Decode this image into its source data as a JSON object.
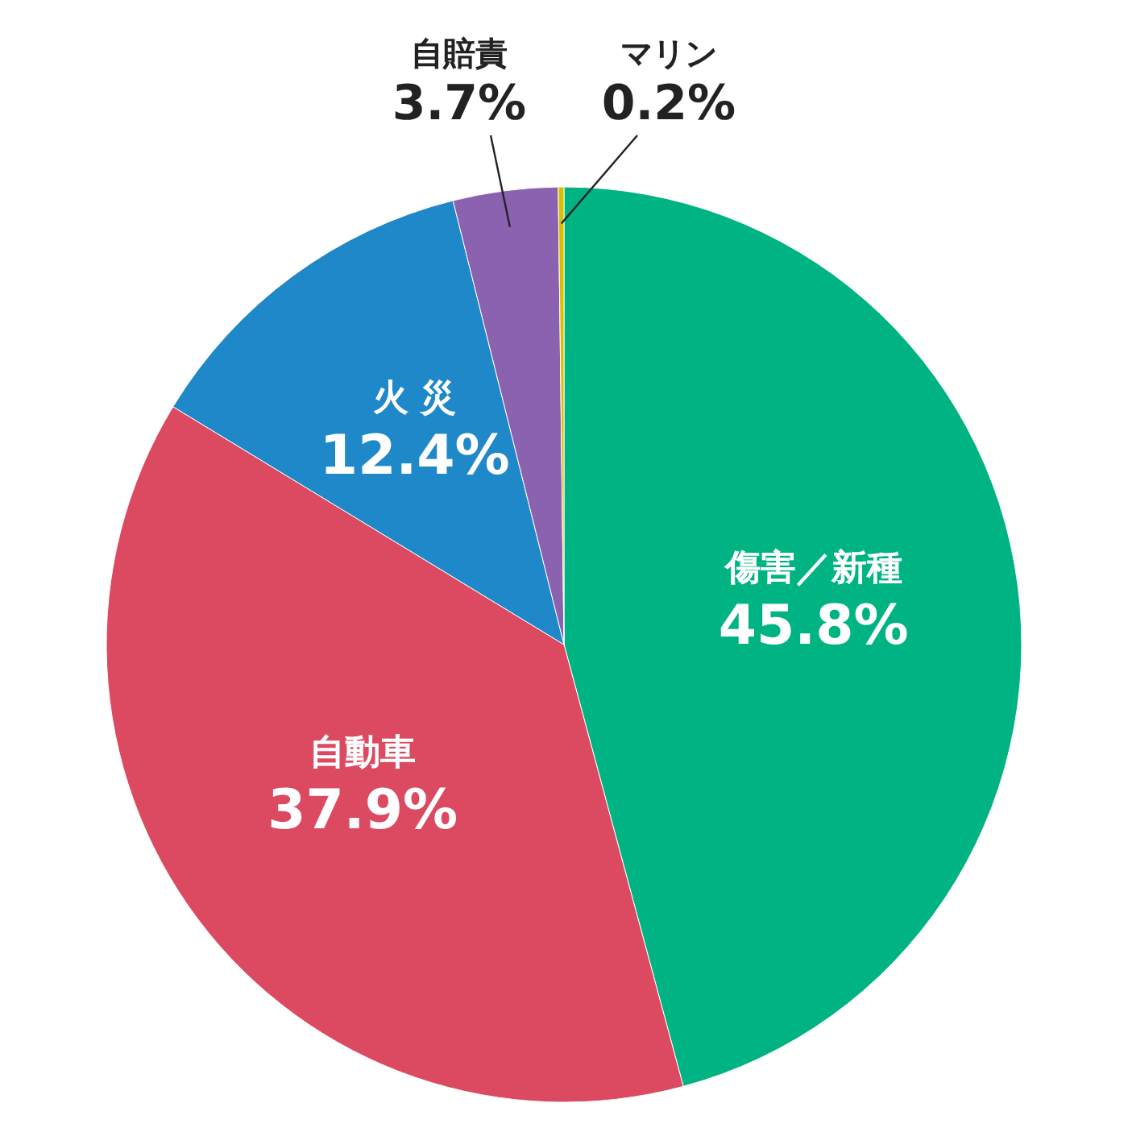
{
  "chart_data": {
    "type": "pie",
    "categories": [
      "傷害／新種",
      "自動車",
      "火 災",
      "自賠責",
      "マリン"
    ],
    "values": [
      45.8,
      37.9,
      12.4,
      3.7,
      0.2
    ],
    "colors": [
      "#00b383",
      "#dc4a62",
      "#1e88c8",
      "#8a62b0",
      "#d8c000"
    ],
    "value_labels": [
      "45.8%",
      "37.9%",
      "12.4%",
      "3.7%",
      "0.2%"
    ]
  }
}
